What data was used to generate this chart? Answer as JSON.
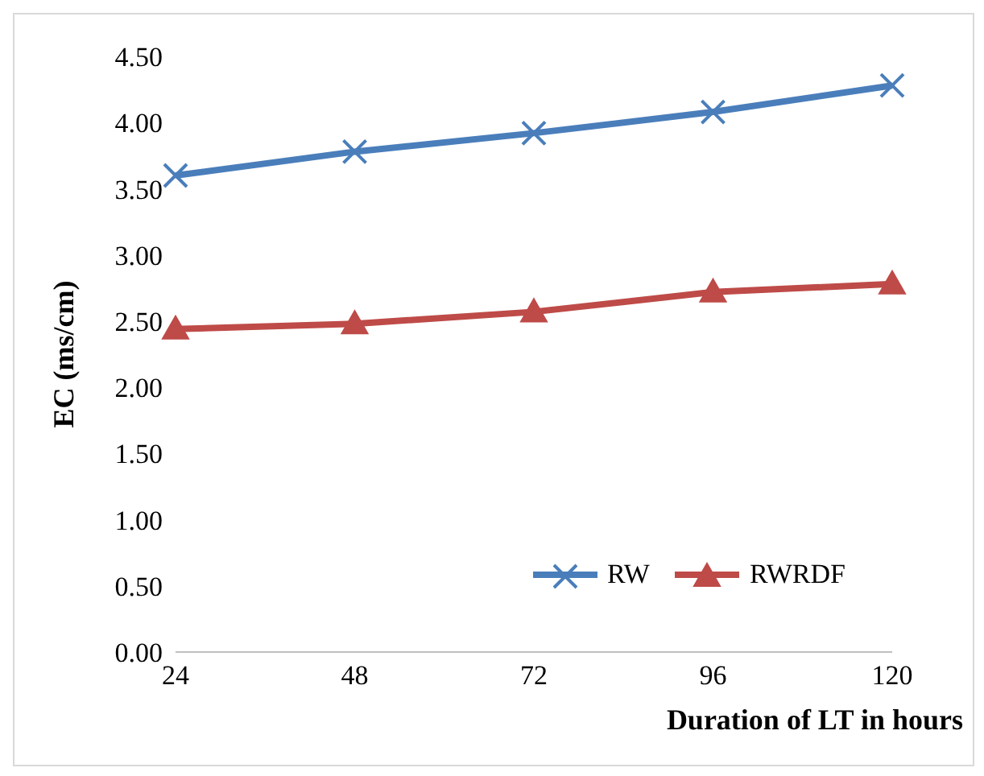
{
  "chart_data": {
    "type": "line",
    "xlabel": "Duration of LT in hours",
    "ylabel": "EC (ms/cm)",
    "categories": [
      "24",
      "48",
      "72",
      "96",
      "120"
    ],
    "series": [
      {
        "name": "RW",
        "color": "#4a7ebb",
        "marker": "cross",
        "values": [
          3.6,
          3.78,
          3.92,
          4.08,
          4.28
        ]
      },
      {
        "name": "RWRDF",
        "color": "#be4b48",
        "marker": "triangle",
        "values": [
          2.44,
          2.48,
          2.57,
          2.72,
          2.78
        ]
      }
    ],
    "ylim": [
      0,
      4.5
    ],
    "yticks": [
      {
        "value": 0,
        "label": "0.00"
      },
      {
        "value": 0.5,
        "label": "0.50"
      },
      {
        "value": 1,
        "label": "1.00"
      },
      {
        "value": 1.5,
        "label": "1.50"
      },
      {
        "value": 2,
        "label": "2.00"
      },
      {
        "value": 2.5,
        "label": "2.50"
      },
      {
        "value": 3,
        "label": "3.00"
      },
      {
        "value": 3.5,
        "label": "3.50"
      },
      {
        "value": 4,
        "label": "4.00"
      },
      {
        "value": 4.5,
        "label": "4.50"
      }
    ],
    "grid": false,
    "legend": "bottom right",
    "line_style": "solid"
  }
}
